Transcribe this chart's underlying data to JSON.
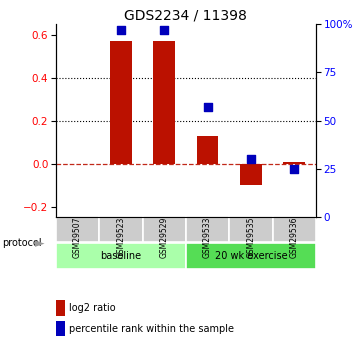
{
  "title": "GDS2234 / 11398",
  "samples": [
    "GSM29507",
    "GSM29523",
    "GSM29529",
    "GSM29533",
    "GSM29535",
    "GSM29536"
  ],
  "log2_ratio": [
    0.0,
    0.57,
    0.57,
    0.13,
    -0.1,
    0.01
  ],
  "percentile_rank": [
    null,
    97.0,
    97.0,
    57.0,
    30.0,
    25.0
  ],
  "groups": [
    {
      "label": "baseline",
      "indices": [
        0,
        1,
        2
      ],
      "color": "#aaffaa"
    },
    {
      "label": "20 wk exercise",
      "indices": [
        3,
        4,
        5
      ],
      "color": "#55dd55"
    }
  ],
  "bar_color": "#bb1100",
  "dot_color": "#0000bb",
  "ylim_left": [
    -0.25,
    0.65
  ],
  "ylim_right": [
    0,
    100
  ],
  "yticks_left": [
    -0.2,
    0.0,
    0.2,
    0.4,
    0.6
  ],
  "yticks_right": [
    0,
    25,
    50,
    75,
    100
  ],
  "ytick_labels_right": [
    "0",
    "25",
    "50",
    "75",
    "100%"
  ],
  "hlines": [
    0.2,
    0.4
  ],
  "bg_color": "#ffffff",
  "protocol_label": "protocol",
  "legend_bar_label": "log2 ratio",
  "legend_dot_label": "percentile rank within the sample",
  "sample_box_color": "#cccccc",
  "bar_width": 0.5
}
